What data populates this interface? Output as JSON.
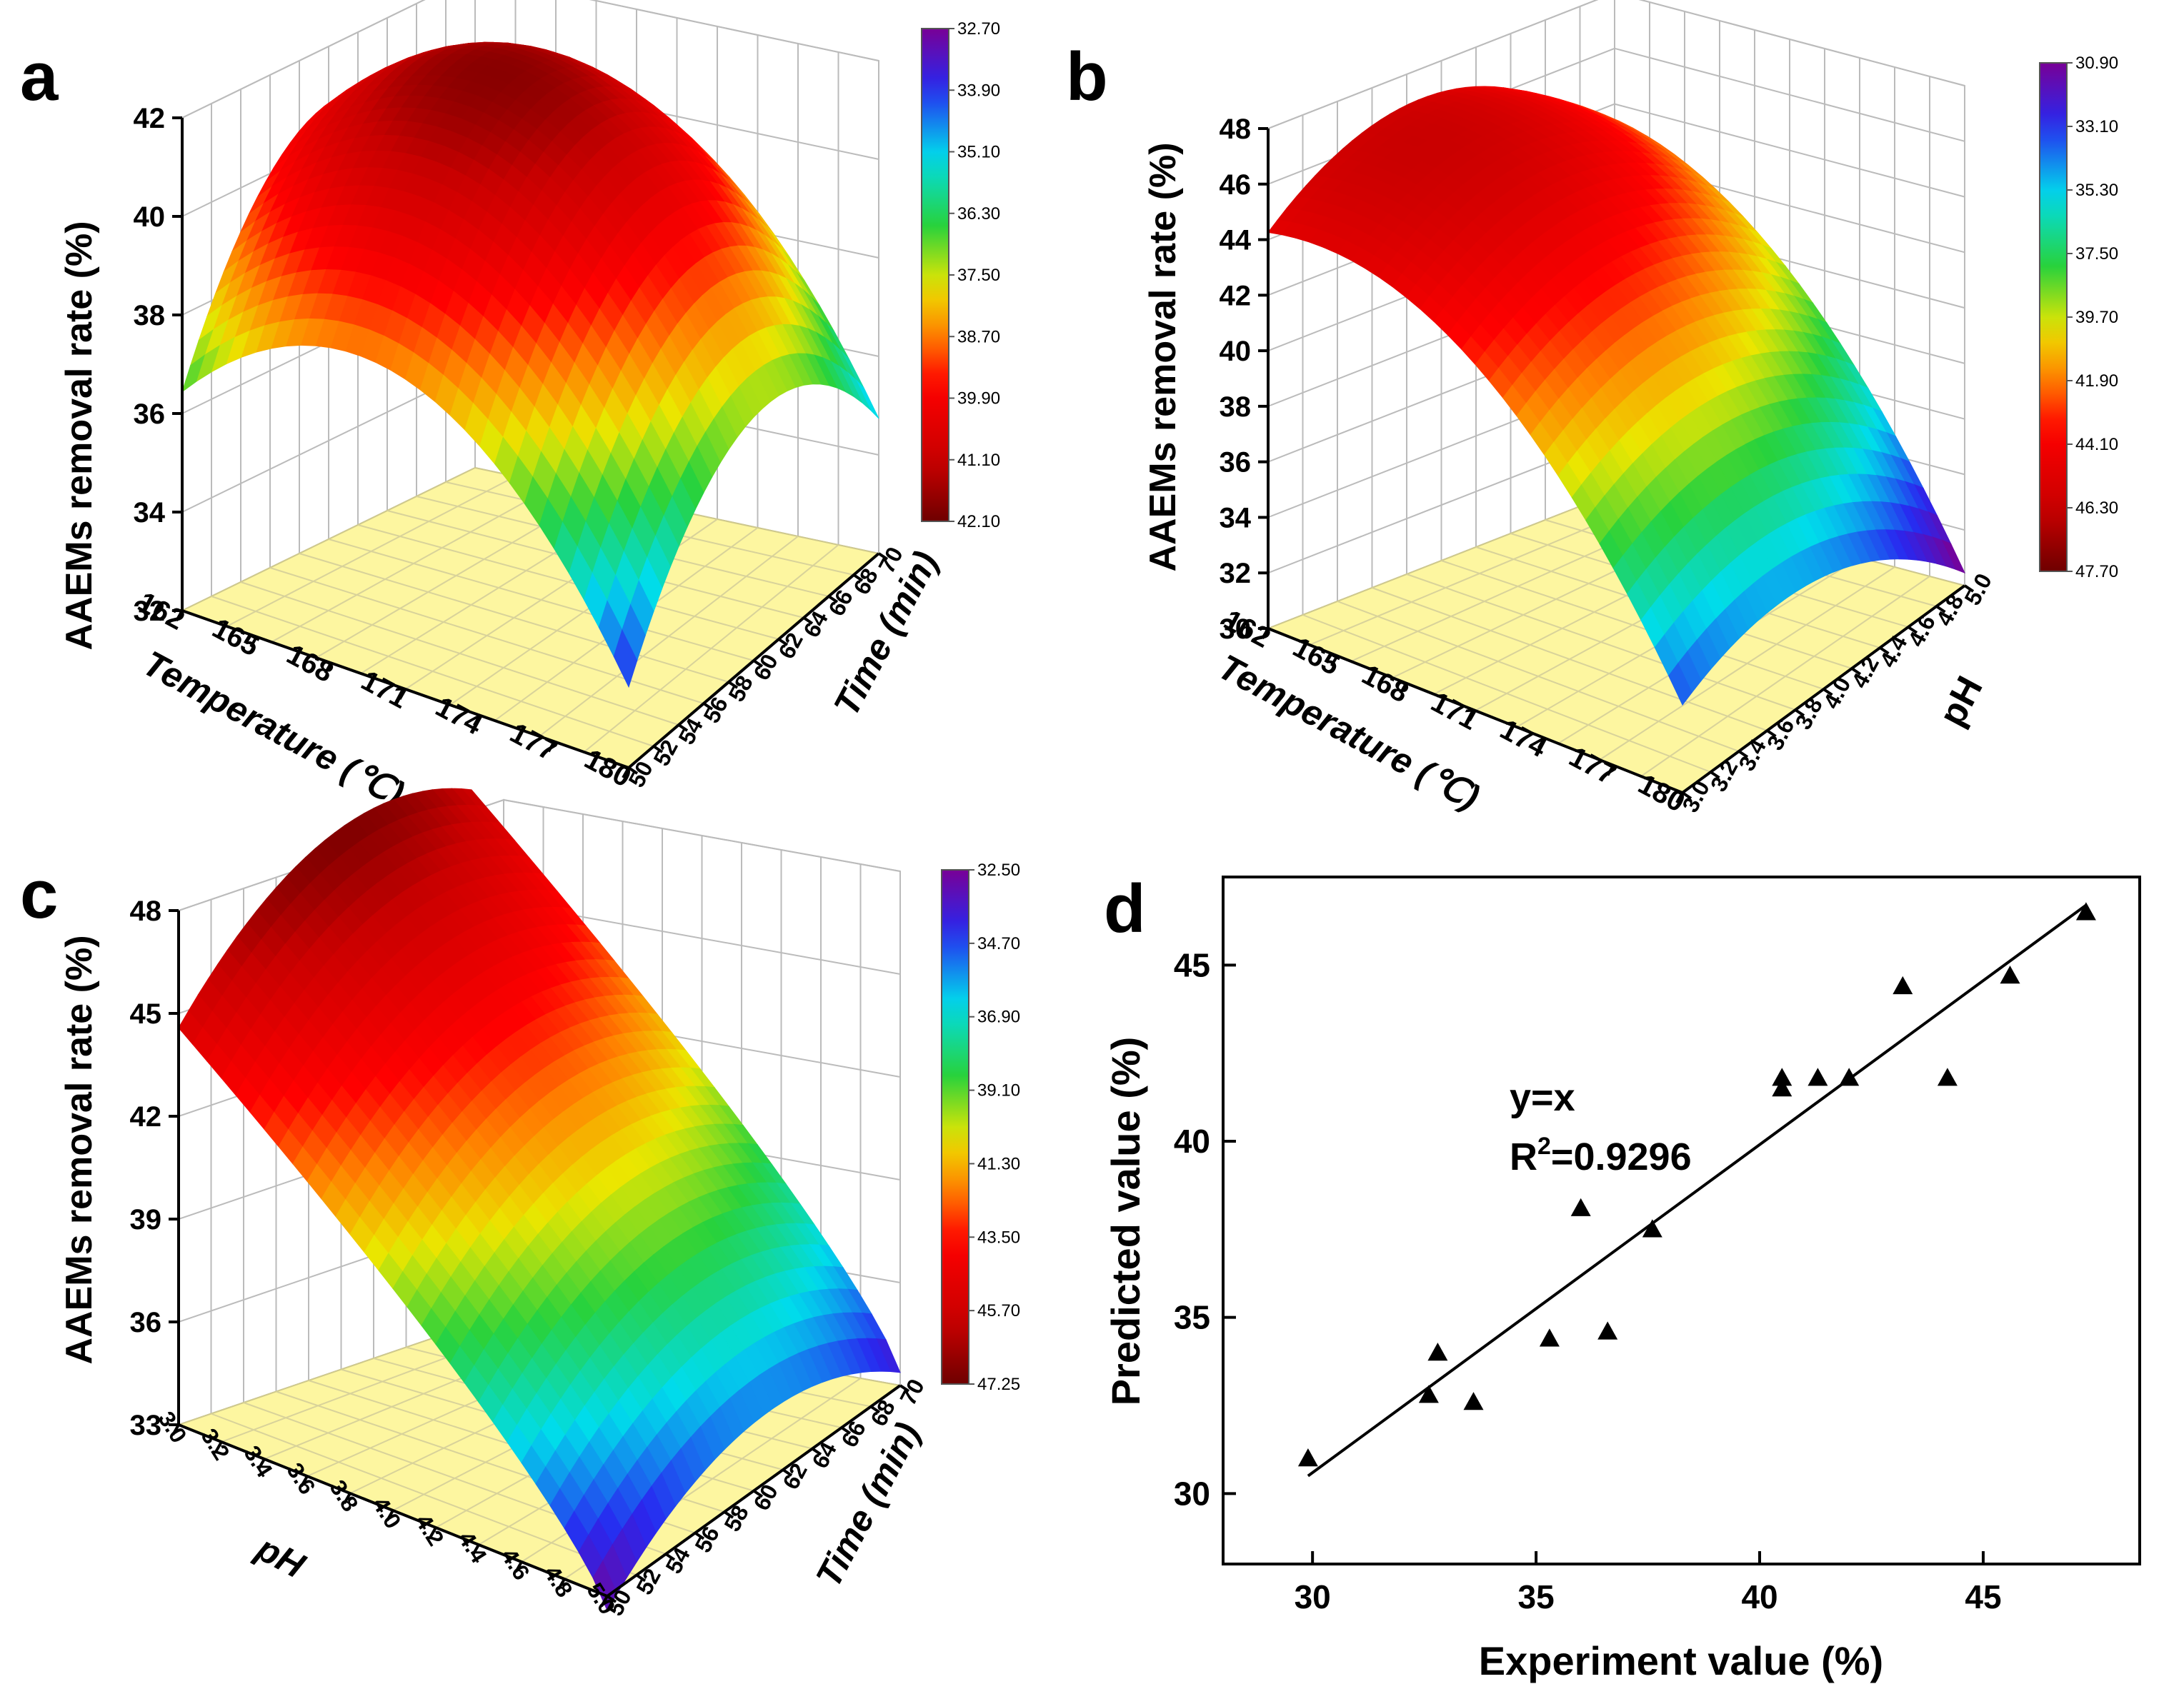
{
  "chart_data": [
    {
      "panel": "a",
      "type": "surface3d",
      "zlabel": "AAEMs removal rate (%)",
      "xlabel": "Temperature (℃)",
      "ylabel": "Time (min)",
      "x_ticks": [
        "162",
        "165",
        "168",
        "171",
        "174",
        "177",
        "180"
      ],
      "y_ticks": [
        "50",
        "52",
        "54",
        "56",
        "58",
        "60",
        "62",
        "64",
        "66",
        "68",
        "70"
      ],
      "z_ticks": [
        "32",
        "34",
        "36",
        "38",
        "40",
        "42"
      ],
      "colorbar_labels": [
        "32.70",
        "33.90",
        "35.10",
        "36.30",
        "37.50",
        "38.70",
        "39.90",
        "41.10",
        "42.10"
      ],
      "zmin": 32.7,
      "zmax": 42.1
    },
    {
      "panel": "b",
      "type": "surface3d",
      "zlabel": "AAEMs removal rate (%)",
      "xlabel": "Temperature (℃)",
      "ylabel": "pH",
      "x_ticks": [
        "162",
        "165",
        "168",
        "171",
        "174",
        "177",
        "180"
      ],
      "y_ticks": [
        "3.0",
        "3.2",
        "3.4",
        "3.6",
        "3.8",
        "4.0",
        "4.2",
        "4.4",
        "4.6",
        "4.8",
        "5.0"
      ],
      "z_ticks": [
        "30",
        "32",
        "34",
        "36",
        "38",
        "40",
        "42",
        "44",
        "46",
        "48"
      ],
      "colorbar_labels": [
        "30.90",
        "33.10",
        "35.30",
        "37.50",
        "39.70",
        "41.90",
        "44.10",
        "46.30",
        "47.70"
      ],
      "zmin": 30.9,
      "zmax": 47.7
    },
    {
      "panel": "c",
      "type": "surface3d",
      "zlabel": "AAEMs removal rate (%)",
      "xlabel": "pH",
      "ylabel": "Time (min)",
      "x_ticks": [
        "3.0",
        "3.2",
        "3.4",
        "3.6",
        "3.8",
        "4.0",
        "4.2",
        "4.4",
        "4.6",
        "4.8",
        "5.0"
      ],
      "y_ticks": [
        "50",
        "52",
        "54",
        "56",
        "58",
        "60",
        "62",
        "64",
        "66",
        "68",
        "70"
      ],
      "z_ticks": [
        "33",
        "36",
        "39",
        "42",
        "45",
        "48"
      ],
      "colorbar_labels": [
        "32.50",
        "34.70",
        "36.90",
        "39.10",
        "41.30",
        "43.50",
        "45.70",
        "47.25"
      ],
      "zmin": 32.5,
      "zmax": 47.25
    },
    {
      "panel": "d",
      "type": "scatter",
      "xlabel": "Experiment value (%)",
      "ylabel": "Predicted value (%)",
      "xlim": [
        28,
        48.5
      ],
      "ylim": [
        28,
        47.5
      ],
      "x_ticks": [
        30,
        35,
        40,
        45
      ],
      "y_ticks": [
        30,
        35,
        40,
        45
      ],
      "x": [
        29.9,
        32.6,
        32.8,
        33.6,
        35.3,
        36.0,
        36.6,
        37.6,
        40.5,
        40.5,
        41.3,
        42.0,
        43.2,
        44.2,
        45.6,
        47.3
      ],
      "y": [
        31.0,
        32.8,
        34.0,
        32.6,
        34.4,
        38.1,
        34.6,
        37.5,
        41.5,
        41.8,
        41.8,
        41.8,
        44.4,
        41.8,
        44.7,
        46.5
      ],
      "fit_line": {
        "x": [
          29.9,
          47.3
        ],
        "y": [
          30.5,
          46.7
        ]
      },
      "annotation_eq": "y=x",
      "annotation_r2_prefix": "R",
      "annotation_r2_sup": "2",
      "annotation_r2_value": "=0.9296"
    }
  ],
  "panel_labels": [
    "a",
    "b",
    "c",
    "d"
  ]
}
